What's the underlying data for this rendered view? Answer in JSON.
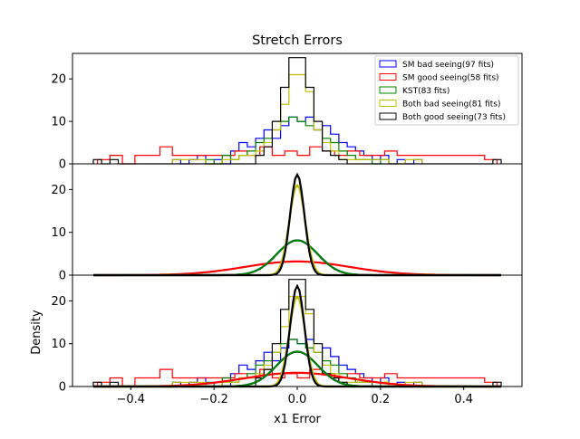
{
  "chart_data": {
    "type": "histogram + line",
    "title": "Stretch Errors",
    "xlabel": "x1 Error",
    "ylabel": "Density",
    "xlim": [
      -0.54,
      0.54
    ],
    "ylim": [
      0,
      26
    ],
    "x_ticks": [
      "−0.4",
      "−0.2",
      "0.0",
      "0.2",
      "0.4"
    ],
    "x_tick_values": [
      -0.4,
      -0.2,
      0.0,
      0.2,
      0.4
    ],
    "y_ticks": [
      "0",
      "10",
      "20"
    ],
    "y_tick_values": [
      0,
      10,
      20
    ],
    "panels": [
      "histograms",
      "gaussian fits",
      "histograms + gaussian fits"
    ],
    "legend": {
      "location": "top-right of first panel",
      "entries": [
        "SM bad seeing(97 fits)",
        "SM good seeing(58 fits)",
        "KST(83 fits)",
        "Both bad seeing(81 fits)",
        "Both good seeing(73 fits)"
      ]
    },
    "series": [
      {
        "name": "SM bad seeing(97 fits)",
        "color": "#0000ff",
        "gaussian": {
          "mean": 0.0,
          "sigma": 0.049
        },
        "hist_edges": [
          -0.3,
          -0.28,
          -0.26,
          -0.24,
          -0.22,
          -0.2,
          -0.18,
          -0.16,
          -0.14,
          -0.12,
          -0.1,
          -0.08,
          -0.06,
          -0.04,
          -0.02,
          0.0,
          0.02,
          0.04,
          0.06,
          0.08,
          0.1,
          0.12,
          0.14,
          0.16,
          0.18,
          0.2,
          0.22,
          0.24,
          0.26,
          0.28,
          0.3
        ],
        "hist_values": [
          1,
          0,
          1,
          2,
          0,
          1,
          0,
          3,
          5,
          4,
          6,
          8,
          6,
          9,
          11,
          10,
          11,
          8,
          9,
          7,
          5,
          4,
          3,
          2,
          1,
          2,
          0,
          1,
          0,
          1
        ]
      },
      {
        "name": "SM good seeing(58 fits)",
        "color": "#ff0000",
        "gaussian": {
          "mean": 0.0,
          "sigma": 0.125
        },
        "hist_edges": [
          -0.48,
          -0.45,
          -0.42,
          -0.39,
          -0.36,
          -0.33,
          -0.3,
          -0.27,
          -0.24,
          -0.21,
          -0.18,
          -0.15,
          -0.12,
          -0.09,
          -0.06,
          -0.03,
          0.0,
          0.03,
          0.06,
          0.09,
          0.12,
          0.15,
          0.18,
          0.21,
          0.24,
          0.27,
          0.3,
          0.33,
          0.36,
          0.39,
          0.42,
          0.45,
          0.48
        ],
        "hist_values": [
          1,
          2,
          0,
          2,
          2,
          4,
          2,
          2,
          2,
          2,
          2,
          3,
          2,
          4,
          2,
          3,
          2,
          4,
          3,
          2,
          3,
          2,
          2,
          3,
          2,
          2,
          2,
          2,
          2,
          2,
          2,
          1
        ]
      },
      {
        "name": "KST(83 fits)",
        "color": "#008000",
        "gaussian": {
          "mean": 0.0,
          "sigma": 0.049
        },
        "hist_edges": [
          -0.22,
          -0.2,
          -0.18,
          -0.16,
          -0.14,
          -0.12,
          -0.1,
          -0.08,
          -0.06,
          -0.04,
          -0.02,
          0.0,
          0.02,
          0.04,
          0.06,
          0.08,
          0.1,
          0.12,
          0.14,
          0.16,
          0.18,
          0.2,
          0.22
        ],
        "hist_values": [
          1,
          0,
          2,
          1,
          2,
          3,
          5,
          6,
          8,
          10,
          11,
          10,
          9,
          8,
          6,
          5,
          3,
          2,
          1,
          1,
          0,
          1
        ]
      },
      {
        "name": "Both bad seeing(81 fits)",
        "color": "#bfbf00",
        "gaussian": {
          "mean": 0.0,
          "sigma": 0.019
        },
        "hist_edges": [
          -0.3,
          -0.26,
          -0.22,
          -0.18,
          -0.14,
          -0.1,
          -0.08,
          -0.06,
          -0.04,
          -0.02,
          0.0,
          0.02,
          0.04,
          0.06,
          0.08,
          0.1,
          0.14,
          0.18,
          0.22,
          0.26,
          0.3
        ],
        "hist_values": [
          1,
          1,
          0,
          1,
          2,
          3,
          5,
          8,
          14,
          21,
          21,
          17,
          8,
          5,
          3,
          1,
          1,
          1,
          0,
          1
        ]
      },
      {
        "name": "Both good seeing(73 fits)",
        "color": "#000000",
        "gaussian": {
          "mean": 0.0,
          "sigma": 0.017
        },
        "hist_edges": [
          -0.49,
          -0.47,
          -0.45,
          -0.43,
          -0.1,
          -0.08,
          -0.06,
          -0.04,
          -0.02,
          0.0,
          0.02,
          0.04,
          0.06,
          0.08,
          0.1,
          0.12,
          0.47,
          0.49
        ],
        "hist_values": [
          1,
          0,
          1,
          0,
          2,
          4,
          10,
          18,
          25,
          25,
          18,
          10,
          3,
          2,
          1,
          0,
          1
        ]
      }
    ]
  }
}
